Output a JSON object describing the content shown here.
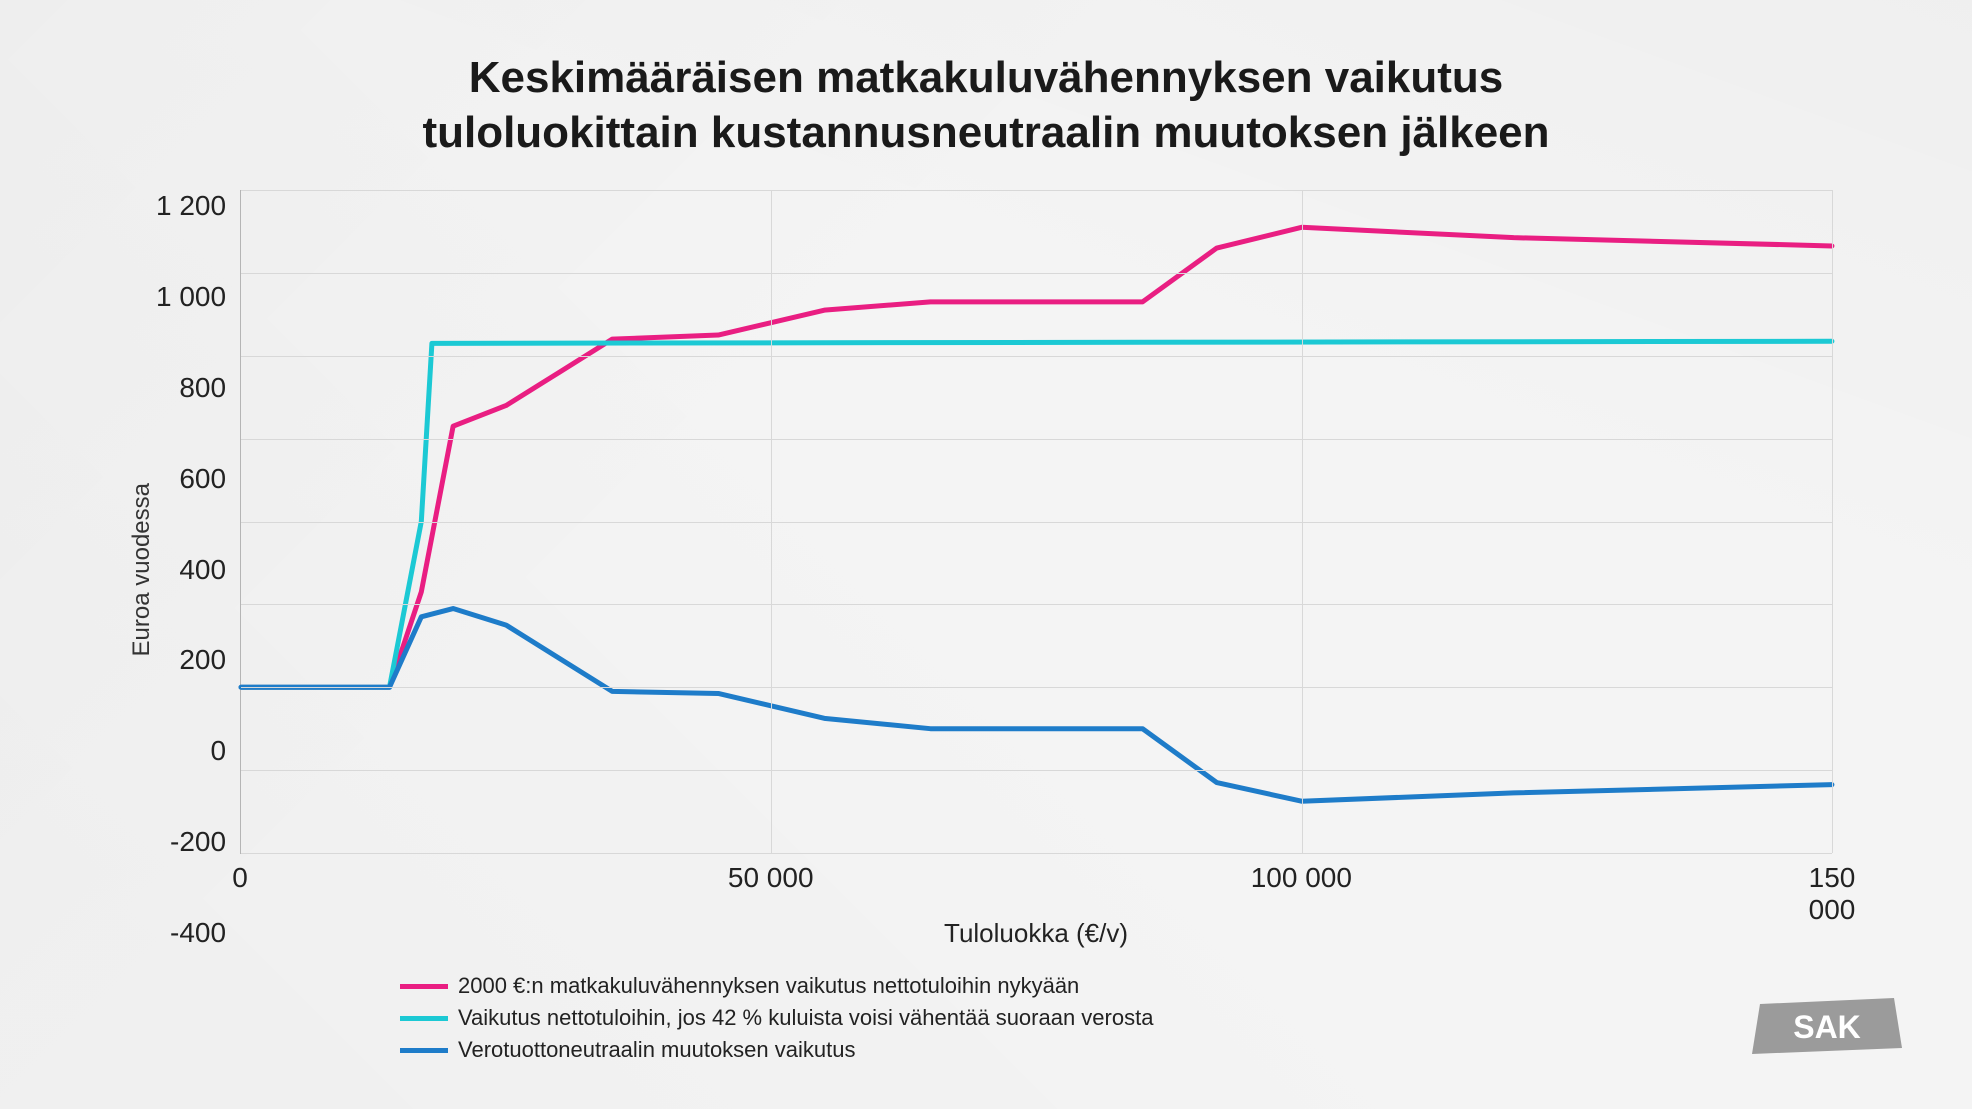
{
  "title_line1": "Keskimääräisen matkakuluvähennyksen vaikutus",
  "title_line2": "tuloluokittain kustannusneutraalin muutoksen jälkeen",
  "title_fontsize": 44,
  "y_axis_label": "Euroa vuodessa",
  "x_axis_label": "Tuloluokka (€/v)",
  "axis_label_fontsize": 26,
  "tick_fontsize": 28,
  "chart": {
    "type": "line",
    "background_color": "transparent",
    "grid_color": "#d8d8d8",
    "axis_color": "#b5b5b5",
    "line_width": 5,
    "xlim": [
      0,
      150000
    ],
    "ylim": [
      -400,
      1200
    ],
    "x_ticks": [
      0,
      50000,
      100000,
      150000
    ],
    "x_tick_labels": [
      "0",
      "50 000",
      "100 000",
      "150 000"
    ],
    "y_ticks": [
      -400,
      -200,
      0,
      200,
      400,
      600,
      800,
      1000,
      1200
    ],
    "y_tick_labels": [
      "-400",
      "-200",
      "0",
      "200",
      "400",
      "600",
      "800",
      "1 000",
      "1 200"
    ],
    "series": [
      {
        "id": "current",
        "label": "2000 €:n matkakuluvähennyksen vaikutus nettotuloihin nykyään",
        "color": "#e91e82",
        "x": [
          0,
          14000,
          17000,
          20000,
          25000,
          30000,
          35000,
          45000,
          55000,
          65000,
          80000,
          85000,
          92000,
          100000,
          120000,
          150000
        ],
        "y": [
          0,
          0,
          230,
          630,
          680,
          760,
          840,
          850,
          910,
          930,
          930,
          930,
          1060,
          1110,
          1085,
          1065
        ]
      },
      {
        "id": "proposed",
        "label": "Vaikutus nettotuloihin, jos 42 % kuluista voisi vähentää suoraan verosta",
        "color": "#1cc9d4",
        "x": [
          0,
          14000,
          17000,
          18000,
          150000
        ],
        "y": [
          0,
          0,
          400,
          830,
          835
        ]
      },
      {
        "id": "neutral",
        "label": "Verotuottoneutraalin muutoksen vaikutus",
        "color": "#1e7cc9",
        "x": [
          0,
          14000,
          17000,
          20000,
          25000,
          30000,
          35000,
          45000,
          55000,
          65000,
          80000,
          85000,
          92000,
          100000,
          120000,
          150000
        ],
        "y": [
          0,
          0,
          170,
          190,
          150,
          70,
          -10,
          -15,
          -75,
          -100,
          -100,
          -100,
          -230,
          -275,
          -255,
          -235
        ]
      }
    ]
  },
  "legend_fontsize": 22,
  "logo_text": "SAK",
  "logo_color": "#9b9b9b",
  "logo_text_color": "#ffffff"
}
